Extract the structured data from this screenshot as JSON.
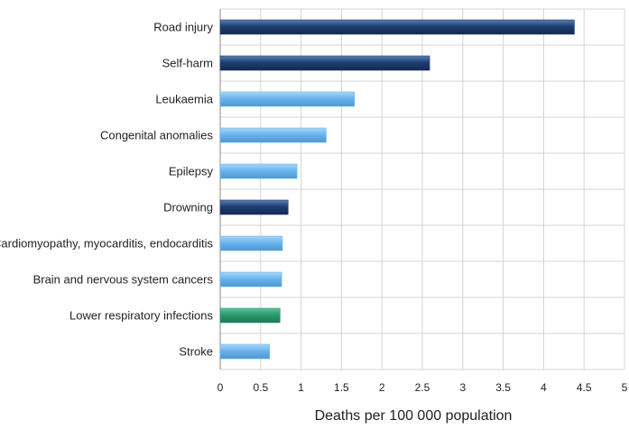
{
  "chart_data": {
    "type": "bar",
    "orientation": "horizontal",
    "title": "",
    "xlabel": "Deaths per 100 000 population",
    "ylabel": "",
    "xlim": [
      0,
      5
    ],
    "xticks": [
      0,
      0.5,
      1,
      1.5,
      2,
      2.5,
      3,
      3.5,
      4,
      4.5,
      5
    ],
    "xtick_labels": [
      "0",
      "0.5",
      "1",
      "1.5",
      "2",
      "2.5",
      "3",
      "3.5",
      "4",
      "4.5",
      "5"
    ],
    "grid": true,
    "legend": "none",
    "categories": [
      "Road injury",
      "Self-harm",
      "Leukaemia",
      "Congenital anomalies",
      "Epilepsy",
      "Drowning",
      "Cardiomyopathy, myocarditis, endocarditis",
      "Brain and nervous system cancers",
      "Lower respiratory infections",
      "Stroke"
    ],
    "values": [
      4.38,
      2.59,
      1.66,
      1.31,
      0.95,
      0.84,
      0.77,
      0.76,
      0.74,
      0.61
    ],
    "bar_groups": [
      "injury",
      "injury",
      "noncommunicable",
      "noncommunicable",
      "noncommunicable",
      "injury",
      "noncommunicable",
      "noncommunicable",
      "communicable",
      "noncommunicable"
    ],
    "colors": {
      "injury": "#1f3f73",
      "noncommunicable": "#6cb4ec",
      "communicable": "#2a9a6e",
      "grid": "#d4d4d4",
      "axis": "#888888"
    }
  }
}
